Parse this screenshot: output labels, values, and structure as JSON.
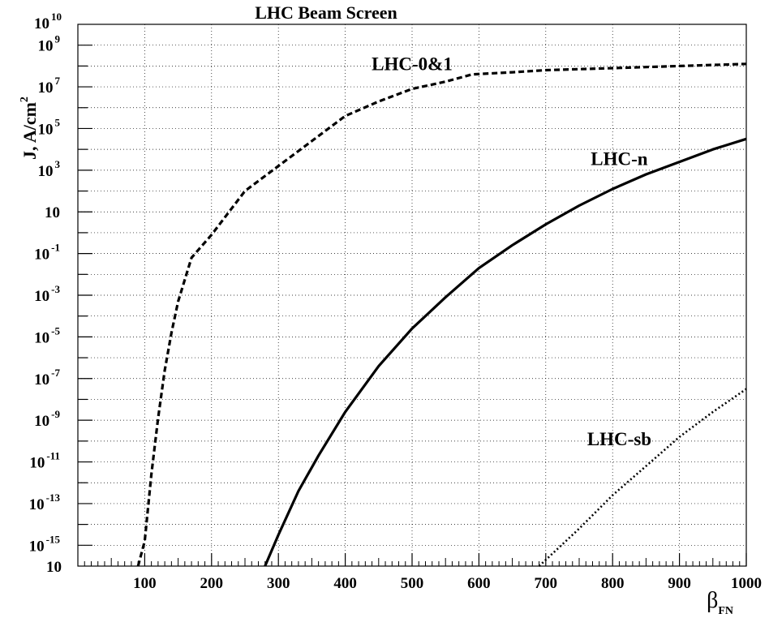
{
  "chart_data": {
    "type": "line",
    "title": "LHC Beam Screen",
    "xlabel": {
      "base": "β",
      "sub": "FN"
    },
    "ylabel": {
      "base": "J, A/cm",
      "sup": "2"
    },
    "xlim": [
      0,
      1000
    ],
    "ylim_exp": [
      -16,
      10
    ],
    "log_y": true,
    "grid": true,
    "x_ticks": [
      "100",
      "200",
      "300",
      "400",
      "500",
      "600",
      "700",
      "800",
      "900",
      "1000"
    ],
    "y_ticks": [
      {
        "base": "10",
        "sup": "-15",
        "exp": -15
      },
      {
        "base": "10",
        "sup": "-13",
        "exp": -13
      },
      {
        "base": "10",
        "sup": "-11",
        "exp": -11
      },
      {
        "base": "10",
        "sup": "-9",
        "exp": -9
      },
      {
        "base": "10",
        "sup": "-7",
        "exp": -7
      },
      {
        "base": "10",
        "sup": "-5",
        "exp": -5
      },
      {
        "base": "10",
        "sup": "-3",
        "exp": -3
      },
      {
        "base": "10",
        "sup": "-1",
        "exp": -1
      },
      {
        "base": "10",
        "sup": "",
        "exp": 1
      },
      {
        "base": "10",
        "sup": "3",
        "exp": 3
      },
      {
        "base": "10",
        "sup": "5",
        "exp": 5
      },
      {
        "base": "10",
        "sup": "7",
        "exp": 7
      },
      {
        "base": "10",
        "sup": "9",
        "exp": 9
      }
    ],
    "y_edge_labels": {
      "top": {
        "base": "10",
        "sup": "10"
      },
      "bottom": {
        "base": "10",
        "sup": ""
      }
    },
    "series": [
      {
        "name": "LHC-0&1",
        "style": "dashed",
        "points": [
          [
            90,
            -16
          ],
          [
            100,
            -14.8
          ],
          [
            110,
            -11.6
          ],
          [
            120,
            -8.9
          ],
          [
            130,
            -6.6
          ],
          [
            140,
            -4.8
          ],
          [
            150,
            -3.3
          ],
          [
            170,
            -1.2
          ],
          [
            200,
            -0.1
          ],
          [
            250,
            2.0
          ],
          [
            300,
            3.2
          ],
          [
            350,
            4.4
          ],
          [
            400,
            5.6
          ],
          [
            450,
            6.3
          ],
          [
            500,
            6.9
          ],
          [
            550,
            7.25
          ],
          [
            590,
            7.6
          ],
          [
            650,
            7.7
          ],
          [
            700,
            7.8
          ],
          [
            800,
            7.9
          ],
          [
            900,
            8.0
          ],
          [
            1000,
            8.1
          ]
        ]
      },
      {
        "name": "LHC-n",
        "style": "solid",
        "points": [
          [
            280,
            -16
          ],
          [
            300,
            -14.5
          ],
          [
            330,
            -12.4
          ],
          [
            360,
            -10.7
          ],
          [
            400,
            -8.6
          ],
          [
            450,
            -6.4
          ],
          [
            500,
            -4.6
          ],
          [
            550,
            -3.1
          ],
          [
            600,
            -1.7
          ],
          [
            650,
            -0.6
          ],
          [
            700,
            0.4
          ],
          [
            750,
            1.3
          ],
          [
            800,
            2.1
          ],
          [
            850,
            2.8
          ],
          [
            900,
            3.4
          ],
          [
            950,
            4.0
          ],
          [
            1000,
            4.5
          ]
        ]
      },
      {
        "name": "LHC-sb",
        "style": "dotted",
        "points": [
          [
            690,
            -16
          ],
          [
            750,
            -14.2
          ],
          [
            800,
            -12.6
          ],
          [
            850,
            -11.2
          ],
          [
            900,
            -9.8
          ],
          [
            950,
            -8.6
          ],
          [
            1000,
            -7.5
          ]
        ]
      }
    ],
    "annotations": [
      {
        "text": "LHC-0&1",
        "x": 500,
        "y": 7.8
      },
      {
        "text": "LHC-n",
        "x": 810,
        "y": 3.25
      },
      {
        "text": "LHC-sb",
        "x": 810,
        "y": -10.2
      }
    ]
  }
}
